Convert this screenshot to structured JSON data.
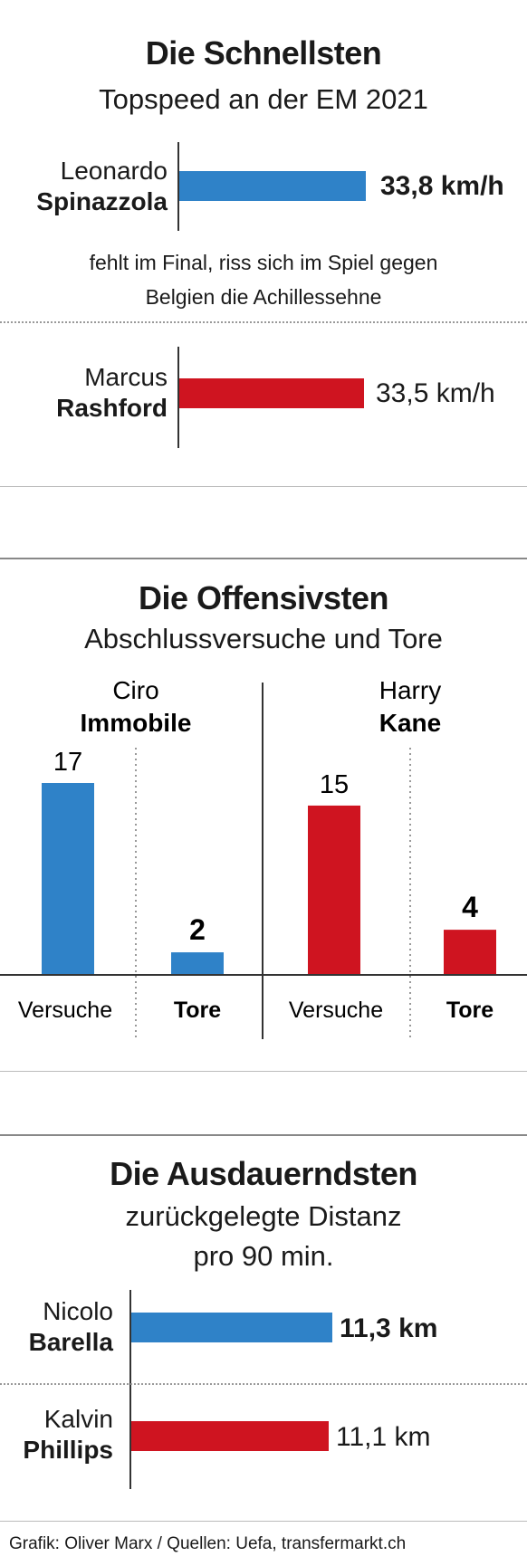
{
  "colors": {
    "blue": "#2f82c8",
    "red": "#cf1420"
  },
  "chart_data": [
    {
      "type": "bar",
      "title": "Die Schnellsten",
      "subtitle": "Topspeed an der EM 2021",
      "unit": "km/h",
      "series": [
        {
          "first": "Leonardo",
          "last": "Spinazzola",
          "value": 33.8,
          "label": "33,8 km/h",
          "color": "#2f82c8"
        },
        {
          "first": "Marcus",
          "last": "Rashford",
          "value": 33.5,
          "label": "33,5 km/h",
          "color": "#cf1420"
        }
      ],
      "note": [
        "fehlt im Final, riss sich im Spiel gegen",
        "Belgien die Achillessehne"
      ]
    },
    {
      "type": "bar",
      "title": "Die Offensivsten",
      "subtitle": "Abschlussversuche und Tore",
      "categories": [
        "Versuche",
        "Tore"
      ],
      "series": [
        {
          "first": "Ciro",
          "last": "Immobile",
          "values": [
            17,
            2
          ],
          "labels": [
            "17",
            "2"
          ],
          "color": "#2f82c8"
        },
        {
          "first": "Harry",
          "last": "Kane",
          "values": [
            15,
            4
          ],
          "labels": [
            "15",
            "4"
          ],
          "color": "#cf1420"
        }
      ],
      "ylim": [
        0,
        17
      ]
    },
    {
      "type": "bar",
      "title": "Die Ausdauerndsten",
      "subtitle": [
        "zurückgelegte Distanz",
        "pro 90 min."
      ],
      "unit": "km",
      "series": [
        {
          "first": "Nicolo",
          "last": "Barella",
          "value": 11.3,
          "label": "11,3 km",
          "color": "#2f82c8"
        },
        {
          "first": "Kalvin",
          "last": "Phillips",
          "value": 11.1,
          "label": "11,1 km",
          "color": "#cf1420"
        }
      ]
    }
  ],
  "footer": "Grafik: Oliver Marx / Quellen: Uefa, transfermarkt.ch"
}
